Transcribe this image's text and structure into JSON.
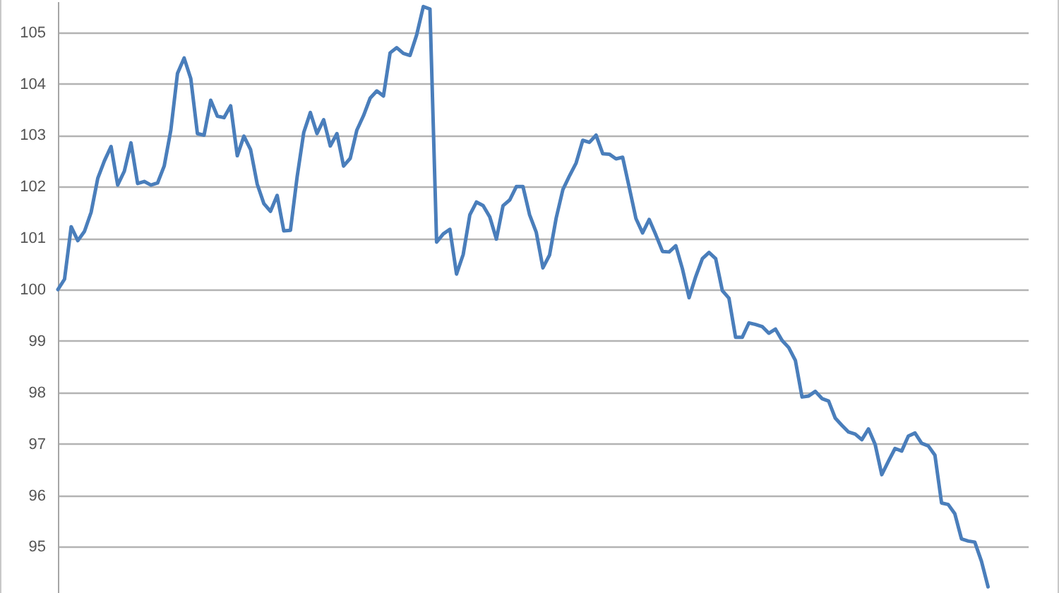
{
  "chart_data": {
    "type": "line",
    "categories": [
      null,
      null,
      null,
      null,
      null,
      null,
      null,
      null,
      null,
      null,
      null,
      null,
      null,
      null,
      null,
      null,
      null,
      null,
      null,
      null,
      null,
      null,
      null,
      null,
      null,
      null,
      null,
      null,
      null,
      null,
      null,
      null,
      null,
      null,
      null,
      null,
      null,
      null,
      null,
      null,
      null,
      null,
      null,
      null,
      null,
      null,
      null,
      null,
      null,
      null,
      null,
      null,
      null,
      null,
      null,
      null,
      null,
      null,
      null,
      null,
      null,
      null,
      null,
      null,
      null,
      null,
      null,
      null,
      null,
      null,
      null,
      null,
      null,
      null,
      null,
      null,
      null,
      null,
      null,
      null,
      null,
      null,
      null,
      null,
      null,
      null,
      null,
      null,
      null,
      null,
      null,
      null,
      null,
      null,
      null,
      null,
      null,
      null,
      null,
      null,
      null,
      null,
      null,
      null,
      null,
      null,
      null,
      null,
      null,
      null,
      null,
      null,
      null,
      null,
      null,
      null,
      null,
      null,
      null,
      null,
      null,
      null,
      null,
      null,
      null,
      null,
      null,
      null,
      null,
      null,
      null,
      null,
      null,
      null,
      null,
      null,
      null,
      null,
      null,
      null,
      null,
      null,
      null,
      null,
      null,
      null,
      null
    ],
    "series": [
      {
        "color": "#4a7ebb",
        "values": [
          100.0,
          100.2,
          101.22,
          100.95,
          101.13,
          101.5,
          102.16,
          102.5,
          102.78,
          102.03,
          102.3,
          102.85,
          102.06,
          102.1,
          102.03,
          102.07,
          102.4,
          103.1,
          104.2,
          104.5,
          104.1,
          103.03,
          103.0,
          103.68,
          103.37,
          103.34,
          103.57,
          102.6,
          102.98,
          102.72,
          102.05,
          101.67,
          101.52,
          101.83,
          101.14,
          101.15,
          102.18,
          103.05,
          103.44,
          103.03,
          103.3,
          102.79,
          103.03,
          102.4,
          102.55,
          103.1,
          103.38,
          103.72,
          103.86,
          103.76,
          104.6,
          104.7,
          104.59,
          104.55,
          104.95,
          105.5,
          105.45,
          100.92,
          101.08,
          101.17,
          100.3,
          100.68,
          101.45,
          101.7,
          101.63,
          101.41,
          100.98,
          101.63,
          101.74,
          102.0,
          102.0,
          101.45,
          101.11,
          100.42,
          100.67,
          101.39,
          101.94,
          102.21,
          102.46,
          102.9,
          102.86,
          103.0,
          102.64,
          102.63,
          102.54,
          102.57,
          101.98,
          101.38,
          101.1,
          101.36,
          101.06,
          100.74,
          100.73,
          100.85,
          100.4,
          99.84,
          100.25,
          100.6,
          100.72,
          100.6,
          99.98,
          99.83,
          99.07,
          99.07,
          99.35,
          99.32,
          99.28,
          99.15,
          99.23,
          99.01,
          98.87,
          98.62,
          97.91,
          97.93,
          98.02,
          97.88,
          97.83,
          97.5,
          97.36,
          97.23,
          97.19,
          97.08,
          97.29,
          96.99,
          96.4,
          96.66,
          96.91,
          96.86,
          97.15,
          97.21,
          97.01,
          96.96,
          96.78,
          95.85,
          95.82,
          95.64,
          95.15,
          95.11,
          95.09,
          94.72,
          94.22,
          null,
          null,
          null,
          null,
          null,
          null
        ]
      }
    ],
    "ylim": [
      94.1,
      105.6
    ],
    "yticks": [
      95,
      96,
      97,
      98,
      99,
      100,
      101,
      102,
      103,
      104,
      105
    ],
    "grid": "y",
    "tick_labels": "y",
    "marker": "none",
    "line_style": "solid"
  }
}
